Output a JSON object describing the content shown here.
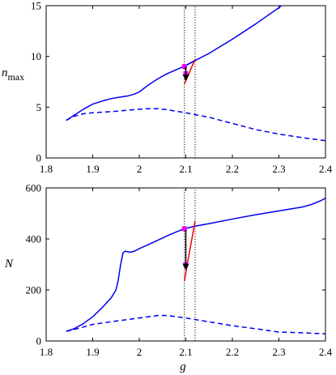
{
  "chart_data": [
    {
      "type": "line",
      "id": "top",
      "ylabel": "n",
      "ylabel_sub": "max",
      "xlim": [
        1.8,
        2.4
      ],
      "ylim": [
        0,
        15
      ],
      "xticks": [
        "1.8",
        "1.9",
        "2",
        "2.1",
        "2.2",
        "2.3",
        "2.4"
      ],
      "yticks": [
        "0",
        "5",
        "10",
        "15"
      ],
      "grid": false,
      "vlines": [
        2.097,
        2.12
      ],
      "series": [
        {
          "style": "solid",
          "color": "#0000ee",
          "points": [
            [
              1.843,
              3.7
            ],
            [
              1.86,
              4.2
            ],
            [
              1.88,
              4.8
            ],
            [
              1.9,
              5.3
            ],
            [
              1.92,
              5.6
            ],
            [
              1.94,
              5.85
            ],
            [
              1.96,
              6.0
            ],
            [
              1.975,
              6.1
            ],
            [
              1.99,
              6.3
            ],
            [
              2.0,
              6.5
            ],
            [
              2.02,
              7.2
            ],
            [
              2.04,
              7.8
            ],
            [
              2.06,
              8.3
            ],
            [
              2.08,
              8.7
            ],
            [
              2.1,
              9.1
            ],
            [
              2.12,
              9.6
            ],
            [
              2.15,
              10.3
            ],
            [
              2.2,
              11.7
            ],
            [
              2.25,
              13.2
            ],
            [
              2.3,
              14.8
            ],
            [
              2.305,
              15.0
            ]
          ]
        },
        {
          "style": "dashed",
          "color": "#0000ee",
          "points": [
            [
              1.843,
              3.7
            ],
            [
              1.86,
              4.1
            ],
            [
              1.88,
              4.35
            ],
            [
              1.9,
              4.45
            ],
            [
              1.95,
              4.6
            ],
            [
              2.0,
              4.8
            ],
            [
              2.02,
              4.85
            ],
            [
              2.04,
              4.85
            ],
            [
              2.06,
              4.75
            ],
            [
              2.1,
              4.45
            ],
            [
              2.15,
              4.0
            ],
            [
              2.2,
              3.4
            ],
            [
              2.25,
              2.8
            ],
            [
              2.3,
              2.35
            ],
            [
              2.35,
              2.0
            ],
            [
              2.4,
              1.7
            ]
          ]
        },
        {
          "style": "solid",
          "color": "#ee0000",
          "points": [
            [
              2.097,
              7.3
            ],
            [
              2.105,
              8.1
            ],
            [
              2.112,
              8.9
            ],
            [
              2.12,
              9.7
            ]
          ]
        },
        {
          "style": "solid",
          "color": "#0000ee",
          "points": [
            [
              2.097,
              9.05
            ],
            [
              2.118,
              9.55
            ]
          ]
        }
      ],
      "markers": [
        {
          "x": 2.097,
          "y": 9.0,
          "color": "#ee00ee"
        },
        {
          "x": 2.1,
          "y": 8.3,
          "color": "#ee00ee"
        }
      ],
      "arrows": [
        {
          "from": [
            2.1,
            9.0
          ],
          "to": [
            2.1,
            7.9
          ],
          "color": "#000000"
        }
      ]
    },
    {
      "type": "line",
      "id": "bottom",
      "ylabel": "N",
      "xlabel": "g",
      "xlim": [
        1.8,
        2.4
      ],
      "ylim": [
        0,
        600
      ],
      "xticks": [
        "1.8",
        "1.9",
        "2",
        "2.1",
        "2.2",
        "2.3",
        "2.4"
      ],
      "yticks": [
        "0",
        "200",
        "400",
        "600"
      ],
      "grid": false,
      "vlines": [
        2.097,
        2.12
      ],
      "series": [
        {
          "style": "solid",
          "color": "#0000ee",
          "points": [
            [
              1.843,
              38
            ],
            [
              1.86,
              48
            ],
            [
              1.88,
              68
            ],
            [
              1.9,
              95
            ],
            [
              1.92,
              130
            ],
            [
              1.94,
              170
            ],
            [
              1.95,
              200
            ],
            [
              1.955,
              240
            ],
            [
              1.96,
              300
            ],
            [
              1.965,
              345
            ],
            [
              1.97,
              352
            ],
            [
              1.98,
              348
            ],
            [
              1.99,
              352
            ],
            [
              2.0,
              362
            ],
            [
              2.02,
              378
            ],
            [
              2.04,
              395
            ],
            [
              2.06,
              412
            ],
            [
              2.08,
              428
            ],
            [
              2.097,
              440
            ],
            [
              2.12,
              450
            ],
            [
              2.15,
              460
            ],
            [
              2.2,
              478
            ],
            [
              2.25,
              495
            ],
            [
              2.3,
              510
            ],
            [
              2.35,
              525
            ],
            [
              2.37,
              535
            ],
            [
              2.39,
              550
            ],
            [
              2.4,
              560
            ]
          ]
        },
        {
          "style": "dashed",
          "color": "#0000ee",
          "points": [
            [
              1.843,
              38
            ],
            [
              1.86,
              45
            ],
            [
              1.88,
              55
            ],
            [
              1.9,
              65
            ],
            [
              1.95,
              78
            ],
            [
              2.0,
              90
            ],
            [
              2.04,
              100
            ],
            [
              2.06,
              100
            ],
            [
              2.08,
              95
            ],
            [
              2.1,
              90
            ],
            [
              2.15,
              75
            ],
            [
              2.2,
              60
            ],
            [
              2.25,
              48
            ],
            [
              2.3,
              35
            ],
            [
              2.35,
              32
            ],
            [
              2.4,
              28
            ]
          ]
        },
        {
          "style": "solid",
          "color": "#ee0000",
          "points": [
            [
              2.097,
              235
            ],
            [
              2.105,
              320
            ],
            [
              2.113,
              400
            ],
            [
              2.12,
              470
            ]
          ]
        }
      ],
      "markers": [
        {
          "x": 2.097,
          "y": 440,
          "color": "#ee00ee"
        },
        {
          "x": 2.1,
          "y": 300,
          "color": "#ee00ee"
        }
      ],
      "arrows": [
        {
          "from": [
            2.1,
            435
          ],
          "to": [
            2.1,
            290
          ],
          "color": "#000000"
        }
      ]
    }
  ]
}
